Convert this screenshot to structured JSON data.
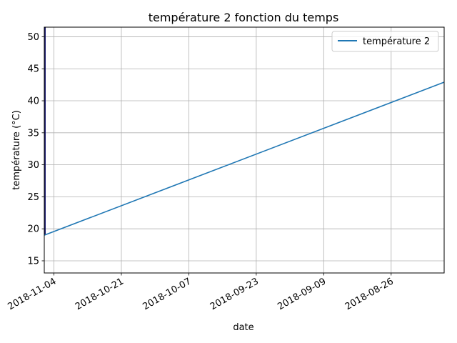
{
  "chart_data": {
    "type": "line",
    "title": "température 2 fonction du temps",
    "xlabel": "date",
    "ylabel": "température (°C)",
    "x_axis": "date",
    "x_direction": "reversed",
    "xlim": [
      "2018-11-06",
      "2018-08-15"
    ],
    "ylim": [
      13.1,
      51.5
    ],
    "grid": true,
    "legend_position": "top-right",
    "x_ticks": [
      "2018-11-04",
      "2018-10-21",
      "2018-10-07",
      "2018-09-23",
      "2018-09-09",
      "2018-08-26"
    ],
    "y_ticks": [
      15,
      20,
      25,
      30,
      35,
      40,
      45,
      50
    ],
    "series": [
      {
        "name": "température 2",
        "color": "#1f77b4",
        "x": [
          "2018-11-06",
          "2018-08-15"
        ],
        "y": [
          19.0,
          42.9
        ]
      }
    ],
    "vertical_segment": {
      "x": "2018-11-06",
      "y": [
        19.0,
        51.5
      ],
      "color": "#1a1a6e"
    }
  }
}
